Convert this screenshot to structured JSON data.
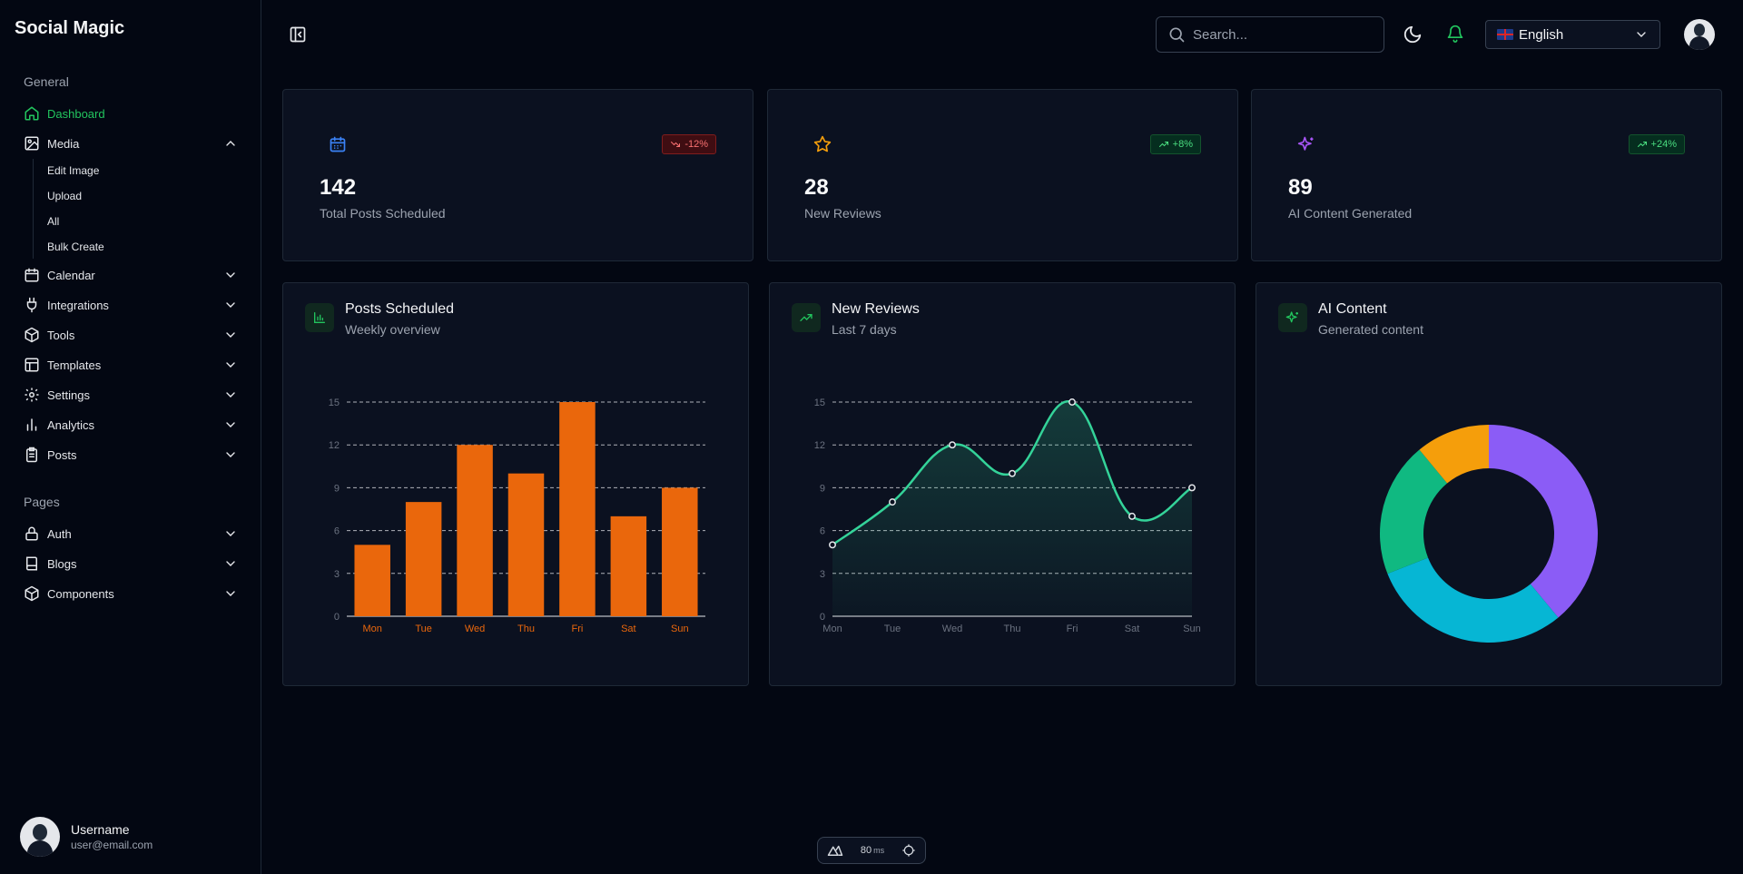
{
  "app": {
    "brand": "Social Magic"
  },
  "sidebar": {
    "general_title": "General",
    "pages_title": "Pages",
    "items": [
      {
        "label": "Dashboard",
        "icon": "home-icon"
      },
      {
        "label": "Media",
        "icon": "image-icon"
      },
      {
        "label": "Calendar",
        "icon": "calendar-icon"
      },
      {
        "label": "Integrations",
        "icon": "plug-icon"
      },
      {
        "label": "Tools",
        "icon": "box-icon"
      },
      {
        "label": "Templates",
        "icon": "layout-icon"
      },
      {
        "label": "Settings",
        "icon": "gear-icon"
      },
      {
        "label": "Analytics",
        "icon": "bar-chart-icon"
      },
      {
        "label": "Posts",
        "icon": "clipboard-icon"
      }
    ],
    "media_sub": [
      "Edit Image",
      "Upload",
      "All",
      "Bulk Create"
    ],
    "pages": [
      {
        "label": "Auth",
        "icon": "lock-icon"
      },
      {
        "label": "Blogs",
        "icon": "book-icon"
      },
      {
        "label": "Components",
        "icon": "box-icon"
      }
    ],
    "user": {
      "name": "Username",
      "email": "user@email.com"
    }
  },
  "header": {
    "search_placeholder": "Search...",
    "language": "English"
  },
  "stats": [
    {
      "value": "142",
      "label": "Total Posts Scheduled",
      "badge": "-12%",
      "trend": "down",
      "icon": "calendar-icon",
      "color": "#3b82f6"
    },
    {
      "value": "28",
      "label": "New Reviews",
      "badge": "+8%",
      "trend": "up",
      "icon": "star-icon",
      "color": "#f59e0b"
    },
    {
      "value": "89",
      "label": "AI Content Generated",
      "badge": "+24%",
      "trend": "up",
      "icon": "sparkles-icon",
      "color": "#a855f7"
    }
  ],
  "charts": {
    "posts": {
      "title": "Posts Scheduled",
      "subtitle": "Weekly overview"
    },
    "reviews": {
      "title": "New Reviews",
      "subtitle": "Last 7 days"
    },
    "ai": {
      "title": "AI Content",
      "subtitle": "Generated content"
    }
  },
  "chart_data": [
    {
      "type": "bar",
      "categories": [
        "Mon",
        "Tue",
        "Wed",
        "Thu",
        "Fri",
        "Sat",
        "Sun"
      ],
      "values": [
        5,
        8,
        12,
        10,
        15,
        7,
        9
      ],
      "ylim": [
        0,
        15
      ],
      "yticks": [
        0,
        3,
        6,
        9,
        12,
        15
      ],
      "grid": true,
      "color": "#ea670c"
    },
    {
      "type": "area",
      "categories": [
        "Mon",
        "Tue",
        "Wed",
        "Thu",
        "Fri",
        "Sat",
        "Sun"
      ],
      "values": [
        5,
        8,
        12,
        10,
        15,
        7,
        9
      ],
      "ylim": [
        0,
        15
      ],
      "yticks": [
        0,
        3,
        6,
        9,
        12,
        15
      ],
      "grid": true,
      "color": "#34d399"
    },
    {
      "type": "pie",
      "donut": true,
      "values": [
        39,
        30,
        20,
        11
      ],
      "colors": [
        "#8b5cf6",
        "#06b6d4",
        "#10b981",
        "#f59e0b"
      ]
    }
  ],
  "devbar": {
    "value": "80",
    "unit": "ms"
  }
}
